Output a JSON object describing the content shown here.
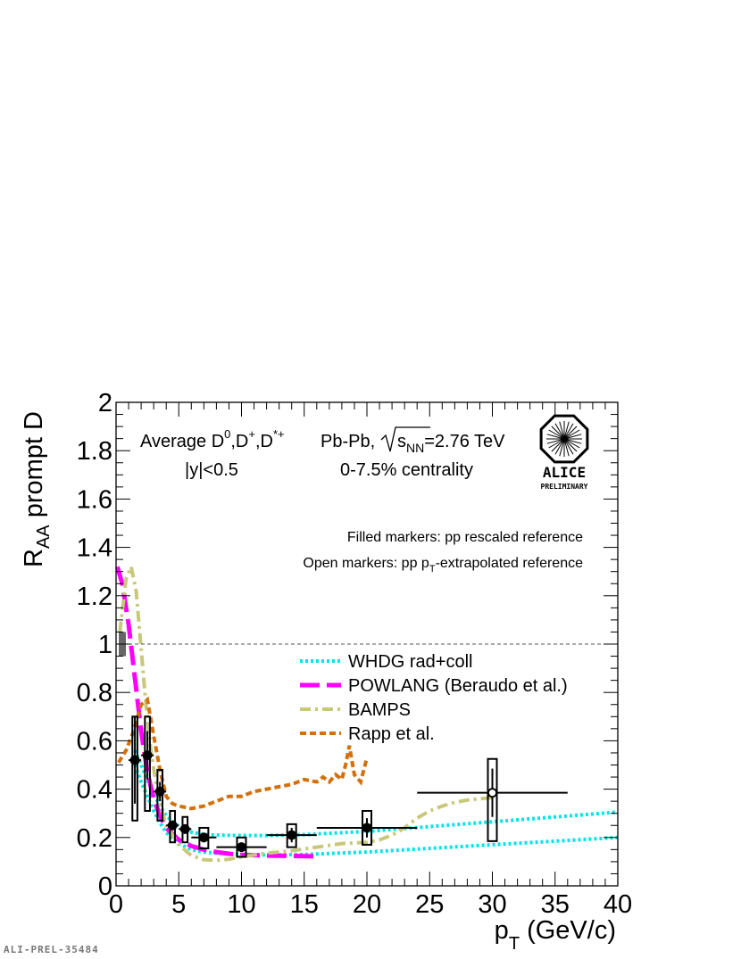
{
  "chart_data": {
    "type": "scatter",
    "title": "",
    "xlabel_main": "p",
    "xlabel_sub": "T",
    "xlabel_unit": " (GeV/c)",
    "ylabel_main": "R",
    "ylabel_sub": "AA",
    "ylabel_rest": " prompt D",
    "xlim": [
      0,
      40
    ],
    "ylim": [
      0,
      2
    ],
    "x_ticks": [
      0,
      5,
      10,
      15,
      20,
      25,
      30,
      35,
      40
    ],
    "y_ticks": [
      0,
      0.2,
      0.4,
      0.6,
      0.8,
      1,
      1.2,
      1.4,
      1.6,
      1.8,
      2
    ],
    "x_tick_labels": [
      "0",
      "5",
      "10",
      "15",
      "20",
      "25",
      "30",
      "35",
      "40"
    ],
    "y_tick_labels": [
      "0",
      "0.2",
      "0.4",
      "0.6",
      "0.8",
      "1",
      "1.2",
      "1.4",
      "1.6",
      "1.8",
      "2"
    ],
    "reference_line": 1.0,
    "annotations": {
      "species": "Average D",
      "species_sup1": "0",
      "species_mid": ",D",
      "species_sup2": "+",
      "species_mid2": ",D",
      "species_sup3": "*+",
      "system": "Pb-Pb,",
      "energy_s": "s",
      "energy_sub": "NN",
      "energy_val": "=2.76 TeV",
      "rapidity": "|y|<0.5",
      "centrality": "0-7.5% centrality",
      "filled_note": "Filled markers: pp rescaled reference",
      "open_note_a": "Open markers: pp p",
      "open_note_sub": "T",
      "open_note_b": "-extrapolated reference",
      "logo_text": "ALICE",
      "logo_sub": "PRELIMINARY"
    },
    "data_points": [
      {
        "x": 1.5,
        "y": 0.52,
        "xerr": 0.5,
        "err_lo": 0.18,
        "err_hi": 0.18,
        "sys_lo": 0.25,
        "sys_hi": 0.18,
        "filled": true
      },
      {
        "x": 2.5,
        "y": 0.54,
        "xerr": 0.5,
        "err_lo": 0.1,
        "err_hi": 0.1,
        "sys_lo": 0.23,
        "sys_hi": 0.16,
        "filled": true
      },
      {
        "x": 3.5,
        "y": 0.39,
        "xerr": 0.5,
        "err_lo": 0.04,
        "err_hi": 0.04,
        "sys_lo": 0.12,
        "sys_hi": 0.09,
        "filled": true
      },
      {
        "x": 4.5,
        "y": 0.25,
        "xerr": 0.5,
        "err_lo": 0.02,
        "err_hi": 0.02,
        "sys_lo": 0.07,
        "sys_hi": 0.06,
        "filled": true
      },
      {
        "x": 5.5,
        "y": 0.235,
        "xerr": 0.5,
        "err_lo": 0.02,
        "err_hi": 0.02,
        "sys_lo": 0.055,
        "sys_hi": 0.05,
        "filled": true
      },
      {
        "x": 7.0,
        "y": 0.2,
        "xerr": 1.0,
        "err_lo": 0.02,
        "err_hi": 0.02,
        "sys_lo": 0.045,
        "sys_hi": 0.04,
        "filled": true
      },
      {
        "x": 10.0,
        "y": 0.16,
        "xerr": 2.0,
        "err_lo": 0.02,
        "err_hi": 0.02,
        "sys_lo": 0.04,
        "sys_hi": 0.04,
        "filled": true
      },
      {
        "x": 14.0,
        "y": 0.21,
        "xerr": 2.0,
        "err_lo": 0.03,
        "err_hi": 0.03,
        "sys_lo": 0.05,
        "sys_hi": 0.045,
        "filled": true
      },
      {
        "x": 20.0,
        "y": 0.24,
        "xerr": 4.0,
        "err_lo": 0.04,
        "err_hi": 0.04,
        "sys_lo": 0.07,
        "sys_hi": 0.07,
        "filled": true
      },
      {
        "x": 30.0,
        "y": 0.385,
        "xerr": 6.0,
        "err_lo": 0.1,
        "err_hi": 0.1,
        "sys_lo": 0.2,
        "sys_hi": 0.14,
        "filled": false
      }
    ],
    "norm_box": {
      "x": 0.5,
      "y_lo": 0.95,
      "y_hi": 1.05
    },
    "series": [
      {
        "name": "WHDG rad+coll",
        "color": "#00e6e6",
        "style": "dotted",
        "band_upper": {
          "x": [
            1.5,
            2,
            2.5,
            3,
            3.5,
            4,
            5,
            6,
            7,
            8,
            10,
            12,
            15,
            20,
            25,
            30,
            35,
            40
          ],
          "y": [
            0.56,
            0.5,
            0.44,
            0.38,
            0.33,
            0.29,
            0.245,
            0.222,
            0.212,
            0.21,
            0.208,
            0.208,
            0.212,
            0.225,
            0.245,
            0.265,
            0.285,
            0.305
          ]
        },
        "band_lower": {
          "x": [
            1.5,
            2,
            2.5,
            3,
            3.5,
            4,
            5,
            6,
            7,
            8,
            10,
            12,
            15,
            20,
            25,
            30,
            35,
            40
          ],
          "y": [
            0.5,
            0.43,
            0.37,
            0.31,
            0.26,
            0.22,
            0.175,
            0.15,
            0.14,
            0.135,
            0.13,
            0.128,
            0.13,
            0.14,
            0.155,
            0.17,
            0.185,
            0.2
          ]
        }
      },
      {
        "name": "POWLANG (Beraudo et al.)",
        "color": "#ff00ff",
        "style": "longdash",
        "x": [
          0.1,
          0.5,
          1,
          1.5,
          2,
          2.5,
          3,
          3.5,
          4,
          5,
          6,
          7,
          8,
          9,
          10,
          12,
          14,
          16
        ],
        "y": [
          1.32,
          1.25,
          1.08,
          0.86,
          0.64,
          0.47,
          0.36,
          0.29,
          0.24,
          0.19,
          0.165,
          0.15,
          0.14,
          0.133,
          0.128,
          0.125,
          0.124,
          0.122
        ]
      },
      {
        "name": "BAMPS",
        "color": "#c8c87a",
        "style": "dashdot",
        "x": [
          0.3,
          0.8,
          1.2,
          1.6,
          2,
          2.4,
          2.8,
          3.2,
          3.6,
          4,
          5,
          6,
          7,
          8,
          9,
          10,
          12,
          14,
          16,
          18,
          20,
          21,
          22,
          23,
          24,
          25,
          26,
          27,
          28,
          29,
          30
        ],
        "y": [
          1.05,
          1.27,
          1.32,
          1.22,
          0.98,
          0.74,
          0.55,
          0.42,
          0.32,
          0.25,
          0.17,
          0.125,
          0.108,
          0.105,
          0.11,
          0.12,
          0.135,
          0.145,
          0.16,
          0.175,
          0.18,
          0.19,
          0.21,
          0.24,
          0.28,
          0.31,
          0.33,
          0.345,
          0.355,
          0.36,
          0.365
        ]
      },
      {
        "name": "Rapp et al.",
        "color": "#d4700a",
        "style": "dashed",
        "x": [
          0.2,
          0.8,
          1.4,
          2,
          2.5,
          3,
          3.5,
          4,
          4.5,
          5,
          6,
          7,
          8,
          9,
          10,
          11,
          12,
          13,
          14,
          15,
          16,
          16.5,
          17,
          17.5,
          18,
          18.3,
          18.6,
          19,
          19.5,
          20
        ],
        "y": [
          0.51,
          0.56,
          0.64,
          0.75,
          0.77,
          0.62,
          0.48,
          0.37,
          0.34,
          0.33,
          0.32,
          0.33,
          0.35,
          0.37,
          0.37,
          0.39,
          0.4,
          0.41,
          0.42,
          0.44,
          0.43,
          0.45,
          0.43,
          0.46,
          0.44,
          0.5,
          0.58,
          0.46,
          0.43,
          0.53
        ]
      }
    ],
    "legend": {
      "placement": "center-right",
      "entries": [
        "WHDG rad+coll",
        "POWLANG (Beraudo et al.)",
        "BAMPS",
        "Rapp et al."
      ]
    },
    "watermark": "ALI-PREL-35484"
  }
}
